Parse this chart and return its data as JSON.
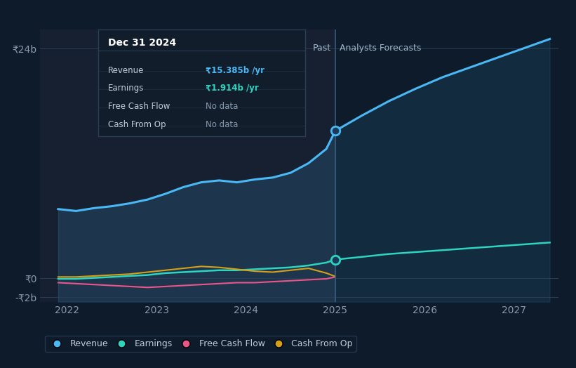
{
  "bg_color": "#0d1b2a",
  "past_bg_color": "#162030",
  "ylabel_top": "₹24b",
  "ylabel_zero": "₹0",
  "ylabel_bottom": "-₹2b",
  "divider_x": 2025.0,
  "past_label": "Past",
  "forecast_label": "Analysts Forecasts",
  "x_ticks": [
    2022,
    2023,
    2024,
    2025,
    2026,
    2027
  ],
  "xlim": [
    2021.7,
    2027.5
  ],
  "ylim": [
    -2.5,
    26
  ],
  "revenue_past_x": [
    2021.9,
    2022.1,
    2022.3,
    2022.5,
    2022.7,
    2022.9,
    2023.1,
    2023.3,
    2023.5,
    2023.7,
    2023.9,
    2024.1,
    2024.3,
    2024.5,
    2024.7,
    2024.9,
    2025.0
  ],
  "revenue_past_y": [
    7.2,
    7.0,
    7.3,
    7.5,
    7.8,
    8.2,
    8.8,
    9.5,
    10.0,
    10.2,
    10.0,
    10.3,
    10.5,
    11.0,
    12.0,
    13.5,
    15.385
  ],
  "revenue_forecast_x": [
    2025.0,
    2025.3,
    2025.6,
    2025.9,
    2026.2,
    2026.5,
    2026.8,
    2027.1,
    2027.4
  ],
  "revenue_forecast_y": [
    15.385,
    17.0,
    18.5,
    19.8,
    21.0,
    22.0,
    23.0,
    24.0,
    25.0
  ],
  "earnings_past_x": [
    2021.9,
    2022.1,
    2022.3,
    2022.5,
    2022.7,
    2022.9,
    2023.1,
    2023.3,
    2023.5,
    2023.7,
    2023.9,
    2024.1,
    2024.3,
    2024.5,
    2024.7,
    2024.9,
    2025.0
  ],
  "earnings_past_y": [
    -0.1,
    -0.1,
    0.0,
    0.1,
    0.2,
    0.3,
    0.5,
    0.6,
    0.7,
    0.8,
    0.8,
    0.9,
    1.0,
    1.1,
    1.3,
    1.6,
    1.914
  ],
  "earnings_forecast_x": [
    2025.0,
    2025.3,
    2025.6,
    2025.9,
    2026.2,
    2026.5,
    2026.8,
    2027.1,
    2027.4
  ],
  "earnings_forecast_y": [
    1.914,
    2.2,
    2.5,
    2.7,
    2.9,
    3.1,
    3.3,
    3.5,
    3.7
  ],
  "fcf_past_x": [
    2021.9,
    2022.1,
    2022.3,
    2022.5,
    2022.7,
    2022.9,
    2023.1,
    2023.3,
    2023.5,
    2023.7,
    2023.9,
    2024.1,
    2024.3,
    2024.5,
    2024.7,
    2024.9,
    2025.0
  ],
  "fcf_past_y": [
    -0.5,
    -0.6,
    -0.7,
    -0.8,
    -0.9,
    -1.0,
    -0.9,
    -0.8,
    -0.7,
    -0.6,
    -0.5,
    -0.5,
    -0.4,
    -0.3,
    -0.2,
    -0.1,
    0.1
  ],
  "cashop_past_x": [
    2021.9,
    2022.1,
    2022.3,
    2022.5,
    2022.7,
    2022.9,
    2023.1,
    2023.3,
    2023.5,
    2023.7,
    2023.9,
    2024.1,
    2024.3,
    2024.5,
    2024.7,
    2024.9,
    2025.0
  ],
  "cashop_past_y": [
    0.1,
    0.1,
    0.2,
    0.3,
    0.4,
    0.6,
    0.8,
    1.0,
    1.2,
    1.1,
    0.9,
    0.7,
    0.6,
    0.8,
    1.0,
    0.5,
    0.15
  ],
  "revenue_color": "#4ab8f5",
  "earnings_color": "#2dd4bf",
  "fcf_color": "#e8568a",
  "cashop_color": "#d4a017",
  "tooltip_bg": "#111d2b",
  "tooltip_border": "#2a3f55",
  "tooltip_title": "Dec 31 2024",
  "tooltip_revenue_label": "Revenue",
  "tooltip_revenue_value": "₹15.385b /yr",
  "tooltip_earnings_label": "Earnings",
  "tooltip_earnings_value": "₹1.914b /yr",
  "tooltip_fcf_label": "Free Cash Flow",
  "tooltip_fcf_value": "No data",
  "tooltip_cashop_label": "Cash From Op",
  "tooltip_cashop_value": "No data",
  "hline_color": "#2a3f55",
  "tick_color": "#8899aa",
  "label_color": "#a0b8cc",
  "text_color": "#c0ccd8"
}
